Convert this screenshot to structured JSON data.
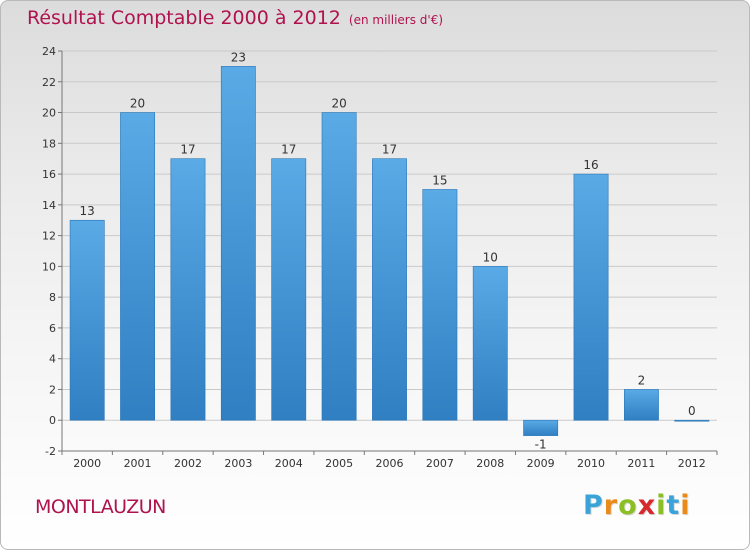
{
  "header": {
    "title": "Résultat Comptable 2000 à 2012",
    "subtitle": "(en milliers d'€)"
  },
  "footer": {
    "commune": "MONTLAUZUN",
    "logo_letters": [
      "P",
      "r",
      "o",
      "x",
      "i",
      "t",
      "i"
    ],
    "logo_colors": [
      "#3aa3d9",
      "#e98a1b",
      "#8cbf26",
      "#d6282d",
      "#8cbf26",
      "#3aa3d9",
      "#e98a1b"
    ]
  },
  "chart_data": {
    "type": "bar",
    "title": "Résultat Comptable 2000 à 2012",
    "ylabel": "en milliers d'€",
    "xlabel": "",
    "categories": [
      "2000",
      "2001",
      "2002",
      "2003",
      "2004",
      "2005",
      "2006",
      "2007",
      "2008",
      "2009",
      "2010",
      "2011",
      "2012"
    ],
    "values": [
      13,
      20,
      17,
      23,
      17,
      20,
      17,
      15,
      10,
      -1,
      16,
      2,
      0
    ],
    "ylim": [
      -2,
      24
    ],
    "yticks": [
      -2,
      0,
      2,
      4,
      6,
      8,
      10,
      12,
      14,
      16,
      18,
      20,
      22,
      24
    ],
    "grid": true,
    "bar_color_top": "#5aaae6",
    "bar_color_bottom": "#2f7fc2"
  }
}
